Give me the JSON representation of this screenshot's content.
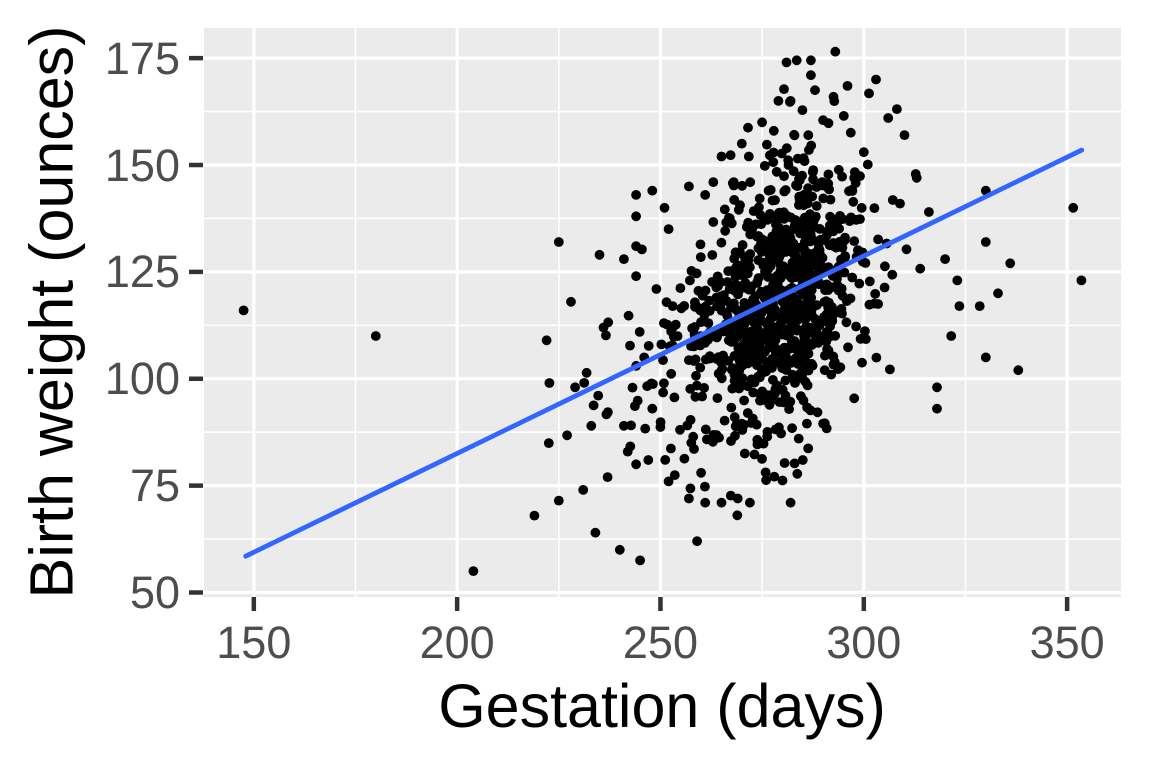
{
  "chart_data": {
    "type": "scatter",
    "title": "",
    "xlabel": "Gestation (days)",
    "ylabel": "Birth weight (ounces)",
    "x_ticks": [
      150,
      200,
      250,
      300,
      350
    ],
    "x_tick_labels": [
      "150",
      "200",
      "250",
      "300",
      "350"
    ],
    "x_minor_ticks": [
      175,
      225,
      275,
      325
    ],
    "y_ticks": [
      50,
      75,
      100,
      125,
      150,
      175
    ],
    "y_tick_labels": [
      "50",
      "75",
      "100",
      "125",
      "150",
      "175"
    ],
    "y_minor_ticks": [
      62.5,
      87.5,
      112.5,
      137.5,
      162.5
    ],
    "xlim": [
      137.75,
      363.25
    ],
    "ylim": [
      48.95,
      182.05
    ],
    "grid": true,
    "legend": false,
    "n_points_approx": 1040,
    "point_radius_px": 4.9,
    "theme": {
      "panel_bg": "#EBEBEB",
      "grid_color": "#FFFFFF",
      "major_grid_width": 3.2,
      "minor_grid_width": 1.6,
      "point_color": "#000000",
      "trend_color": "#3366FF",
      "trend_width": 4.8,
      "tick_mark_color": "#333333",
      "tick_label_color": "#4D4D4D",
      "axis_title_color": "#000000",
      "outer_bg": "#FFFFFF"
    },
    "trend_line": {
      "type": "linear",
      "x1": 148,
      "y1": 58.5,
      "x2": 353.6,
      "y2": 153.5,
      "slope_oz_per_day": 0.463,
      "intercept_oz": -10.0
    },
    "points": [
      [
        147.5,
        116
      ],
      [
        180,
        110
      ],
      [
        204,
        55
      ],
      [
        219,
        68
      ],
      [
        222,
        109
      ],
      [
        225,
        132
      ],
      [
        225,
        71.5
      ],
      [
        228,
        118
      ],
      [
        229,
        98
      ],
      [
        231,
        74
      ],
      [
        233,
        89
      ],
      [
        234,
        64
      ],
      [
        235,
        129
      ],
      [
        236,
        112
      ],
      [
        237,
        77
      ],
      [
        240,
        60
      ],
      [
        241,
        89
      ],
      [
        241,
        128
      ],
      [
        244,
        80
      ],
      [
        244,
        124
      ],
      [
        244,
        131
      ],
      [
        244,
        138
      ],
      [
        244,
        143
      ],
      [
        245,
        57.5
      ],
      [
        246,
        105
      ],
      [
        247,
        81
      ],
      [
        248,
        93
      ],
      [
        248,
        144
      ],
      [
        249,
        121
      ],
      [
        251,
        140
      ],
      [
        252,
        76
      ],
      [
        252,
        135
      ],
      [
        253,
        117
      ],
      [
        257,
        72
      ],
      [
        257,
        145
      ],
      [
        259,
        62
      ],
      [
        260,
        78
      ],
      [
        261,
        71
      ],
      [
        261,
        143
      ],
      [
        263,
        146
      ],
      [
        265,
        71
      ],
      [
        265,
        152
      ],
      [
        268,
        146
      ],
      [
        269,
        72
      ],
      [
        270,
        155
      ],
      [
        272,
        71
      ],
      [
        275,
        160
      ],
      [
        279,
        165
      ],
      [
        281,
        174
      ],
      [
        282,
        71
      ],
      [
        282,
        165
      ],
      [
        283.5,
        174.5
      ],
      [
        284,
        86
      ],
      [
        285,
        81
      ],
      [
        286,
        89.5
      ],
      [
        287,
        171
      ],
      [
        287,
        174.5
      ],
      [
        288,
        167.5
      ],
      [
        290,
        89.5
      ],
      [
        293,
        176.5
      ],
      [
        296,
        168.5
      ],
      [
        300,
        153
      ],
      [
        303,
        170
      ],
      [
        306,
        161
      ],
      [
        310,
        157
      ],
      [
        313,
        147
      ],
      [
        316,
        139
      ],
      [
        318,
        93
      ],
      [
        318,
        98
      ],
      [
        320,
        128
      ],
      [
        321.5,
        110
      ],
      [
        323,
        123
      ],
      [
        323.5,
        117
      ],
      [
        328.5,
        117
      ],
      [
        330,
        105
      ],
      [
        330,
        132
      ],
      [
        330,
        144
      ],
      [
        333,
        120
      ],
      [
        336,
        127
      ],
      [
        338,
        102
      ],
      [
        351.5,
        140
      ],
      [
        353.5,
        123
      ]
    ],
    "point_clusters": [
      {
        "seed": 42,
        "count": 845,
        "mean_x": 280.5,
        "mean_y": 121,
        "sd_x": 10.5,
        "sd_y": 16.5,
        "corr": 0.32,
        "clamp_x": [
          224,
          334
        ],
        "clamp_y": [
          64,
          173.5
        ],
        "exclude": [
          {
            "x_min": 292,
            "y_max": 91
          },
          {
            "x_min": 305,
            "y_max": 100
          },
          {
            "x_max": 252,
            "y_min": 147
          }
        ]
      },
      {
        "seed": 7,
        "count": 115,
        "mean_x": 260,
        "mean_y": 104,
        "sd_x": 15,
        "sd_y": 15,
        "corr": 0.2,
        "clamp_x": [
          217,
          302
        ],
        "clamp_y": [
          64,
          150
        ],
        "exclude": [
          {
            "x_min": 285,
            "y_max": 85
          }
        ]
      }
    ]
  }
}
